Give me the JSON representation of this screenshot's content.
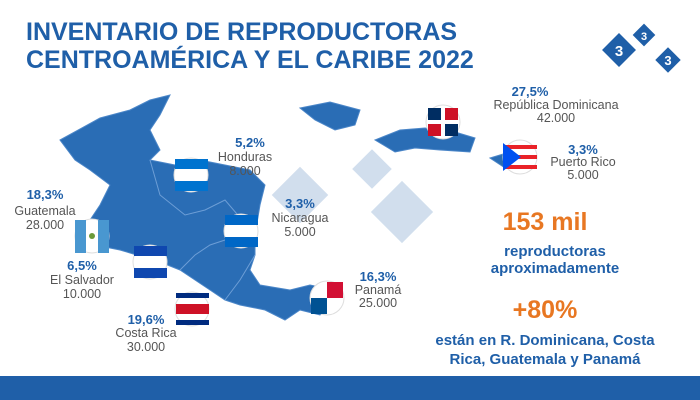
{
  "header": {
    "title_lines": [
      "INVENTARIO DE REPRODUCTORAS",
      "CENTROAMÉRICA Y EL CARIBE 2022"
    ],
    "logo": [
      "3",
      "3",
      "3"
    ]
  },
  "countries": [
    {
      "share": "27,5%",
      "name": "República Dominicana",
      "count": "42.000"
    },
    {
      "share": "3,3%",
      "name": "Puerto Rico",
      "count": "5.000"
    },
    {
      "share": "5,2%",
      "name": "Honduras",
      "count": "8.000"
    },
    {
      "share": "18,3%",
      "name": "Guatemala",
      "count": "28.000"
    },
    {
      "share": "3,3%",
      "name": "Nicaragua",
      "count": "5.000"
    },
    {
      "share": "6,5%",
      "name": "El Salvador",
      "count": "10.000"
    },
    {
      "share": "19,6%",
      "name": "Costa Rica",
      "count": "30.000"
    },
    {
      "share": "16,3%",
      "name": "Panamá",
      "count": "25.000"
    }
  ],
  "summary": {
    "total": "153 mil",
    "total_text": [
      "reproductoras",
      "aproximadamente"
    ],
    "share": "+80%",
    "share_text": [
      "están en R. Dominicana, Costa",
      "Rica, Guatemala y Panamá"
    ]
  }
}
